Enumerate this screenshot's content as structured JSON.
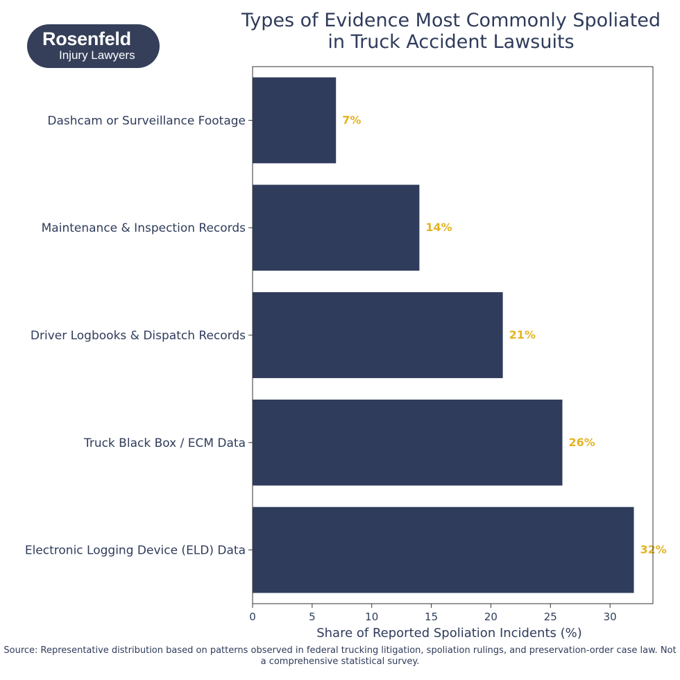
{
  "logo": {
    "brand": "Rosenfeld",
    "tagline": "Injury Lawyers"
  },
  "chart_data": {
    "type": "bar",
    "orientation": "horizontal",
    "title": "Types of Evidence Most Commonly Spoliated\nin Truck Accident Lawsuits",
    "xlabel": "Share of Reported Spoliation Incidents (%)",
    "ylabel": "",
    "categories": [
      "Dashcam or Surveillance Footage",
      "Maintenance & Inspection Records",
      "Driver Logbooks & Dispatch Records",
      "Truck Black Box / ECM Data",
      "Electronic Logging Device (ELD) Data"
    ],
    "values": [
      7,
      14,
      21,
      26,
      32
    ],
    "data_labels": [
      "7%",
      "14%",
      "21%",
      "26%",
      "32%"
    ],
    "xlim": [
      0,
      33.6
    ],
    "xticks": [
      0,
      5,
      10,
      15,
      20,
      25,
      30
    ],
    "grid": false,
    "bar_color": "#2f3c5c",
    "label_color": "#e3b422"
  },
  "source": "Source: Representative distribution based on patterns observed in federal trucking litigation, spoliation rulings, and preservation-order case law. Not a comprehensive statistical survey."
}
